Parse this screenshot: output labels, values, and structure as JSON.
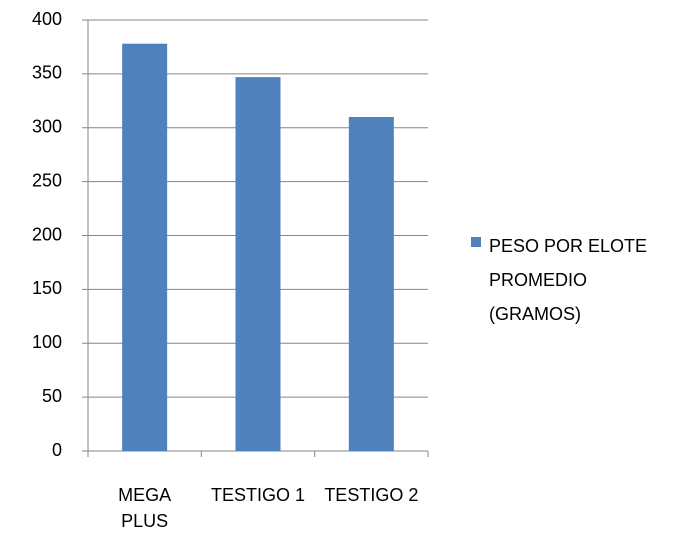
{
  "chart_data": {
    "type": "bar",
    "categories": [
      "MEGA PLUS",
      "TESTIGO 1",
      "TESTIGO 2"
    ],
    "series": [
      {
        "name": "PESO POR ELOTE PROMEDIO (GRAMOS)",
        "color": "#4f81bd",
        "values": [
          378,
          347,
          310
        ]
      }
    ],
    "ylim": [
      0,
      400
    ],
    "yticks": [
      0,
      50,
      100,
      150,
      200,
      250,
      300,
      350,
      400
    ],
    "grid": true,
    "legend": "right"
  }
}
